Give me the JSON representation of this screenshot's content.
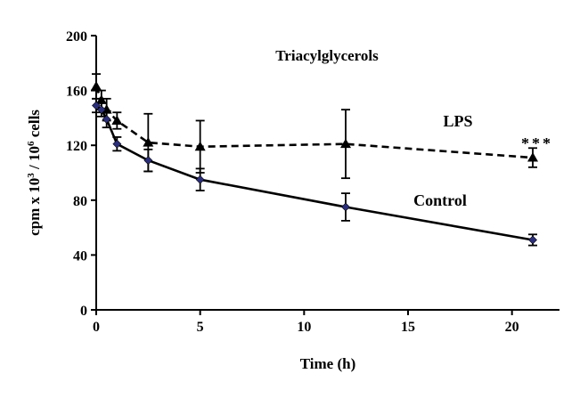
{
  "chart_data": {
    "type": "line",
    "title": "Triacylglycerols",
    "xlabel": "Time (h)",
    "ylabel": "cpm x 10³ / 10⁶ cells",
    "ylabel_parts": {
      "pre": "cpm x 10",
      "sup1": "3",
      "mid": " / 10",
      "sup2": "6",
      "post": " cells"
    },
    "xlim": [
      0,
      22
    ],
    "ylim": [
      0,
      200
    ],
    "xticks": [
      0,
      5,
      10,
      15,
      20
    ],
    "yticks": [
      0,
      40,
      80,
      120,
      160,
      200
    ],
    "grid": false,
    "series": [
      {
        "name": "LPS",
        "line_style": "dashed",
        "marker": "triangle",
        "color": "#000000",
        "x": [
          0,
          0.25,
          0.5,
          1,
          2.5,
          5,
          12,
          21
        ],
        "y": [
          163,
          153,
          146,
          138,
          122,
          119,
          121,
          111
        ],
        "err": [
          9,
          7,
          8,
          6,
          21,
          19,
          25,
          7
        ]
      },
      {
        "name": "Control",
        "line_style": "solid",
        "marker": "diamond",
        "color": "#000000",
        "marker_color": "#2b2f7a",
        "x": [
          0,
          0.25,
          0.5,
          1,
          2.5,
          5,
          12,
          21
        ],
        "y": [
          149,
          146,
          139,
          121,
          109,
          95,
          75,
          51
        ],
        "err": [
          5,
          5,
          6,
          5,
          8,
          8,
          10,
          4
        ]
      }
    ],
    "annotations": [
      {
        "text": "***",
        "near_series": "LPS",
        "at_x": 21
      }
    ]
  }
}
